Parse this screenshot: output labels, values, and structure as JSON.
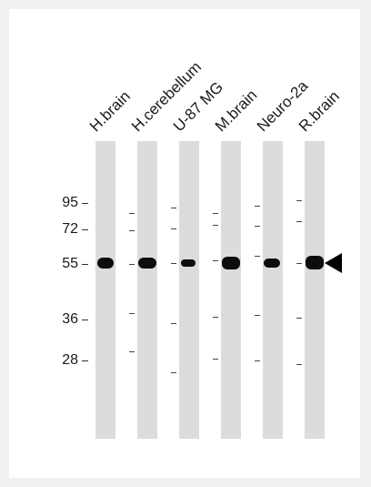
{
  "lanes": [
    {
      "label": "H.brain"
    },
    {
      "label": "H.cerebellum"
    },
    {
      "label": "U-87 MG"
    },
    {
      "label": "M.brain"
    },
    {
      "label": "Neuro-2a"
    },
    {
      "label": "R.brain"
    }
  ],
  "markers": [
    {
      "label": "95"
    },
    {
      "label": "72"
    },
    {
      "label": "55"
    },
    {
      "label": "36"
    },
    {
      "label": "28"
    }
  ],
  "target_band_marker": "arrowhead",
  "colors": {
    "lane": "#dcdcdc",
    "band": "#0d0d0d",
    "border": "#f1f1f1"
  }
}
